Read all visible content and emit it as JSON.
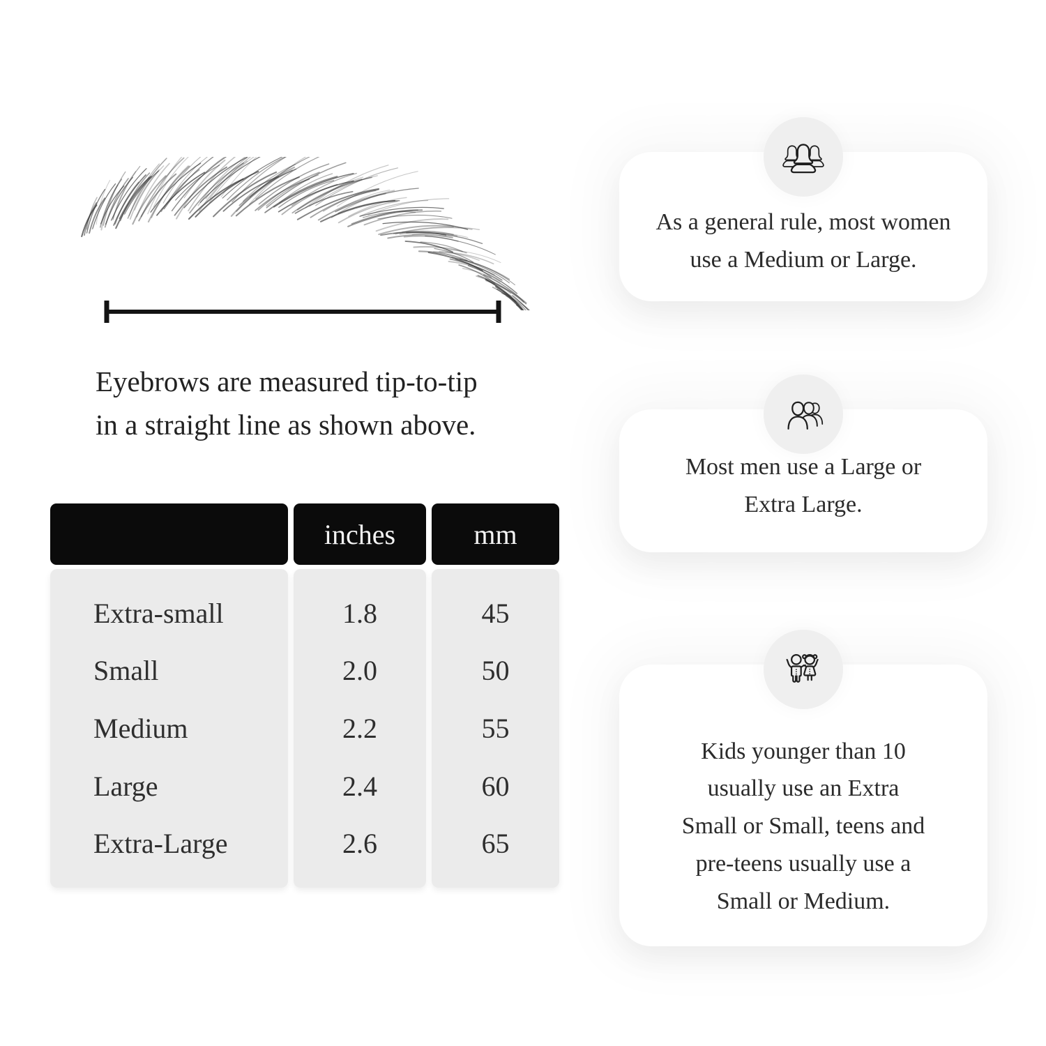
{
  "measurement_figure": {
    "caption_lines": [
      "Eyebrows are measured tip-to-tip",
      "in a straight line as shown above."
    ]
  },
  "size_table": {
    "column_headers": [
      "",
      "inches",
      "mm"
    ],
    "rows": [
      {
        "label": "Extra-small",
        "inches": "1.8",
        "mm": "45"
      },
      {
        "label": "Small",
        "inches": "2.0",
        "mm": "50"
      },
      {
        "label": "Medium",
        "inches": "2.2",
        "mm": "55"
      },
      {
        "label": "Large",
        "inches": "2.4",
        "mm": "60"
      },
      {
        "label": "Extra-Large",
        "inches": "2.6",
        "mm": "65"
      }
    ]
  },
  "info_cards": [
    {
      "icon": "women-group-icon",
      "lines": [
        "As a general rule, most women",
        "use a Medium or Large."
      ]
    },
    {
      "icon": "men-group-icon",
      "lines": [
        "Most men use a Large or",
        "Extra Large."
      ]
    },
    {
      "icon": "kids-icon",
      "lines": [
        "Kids younger than 10",
        "usually use an Extra",
        "Small or Small, teens and",
        "pre-teens usually use a",
        "Small or Medium."
      ]
    }
  ],
  "colors": {
    "page_bg": "#ffffff",
    "table_header_bg": "#0b0b0b",
    "table_header_text": "#f4f4f4",
    "table_body_bg": "#ebebeb",
    "card_bg": "#ffffff",
    "badge_bg": "#efefef",
    "icon_stroke": "#1e1e1e",
    "text": "#262626"
  }
}
